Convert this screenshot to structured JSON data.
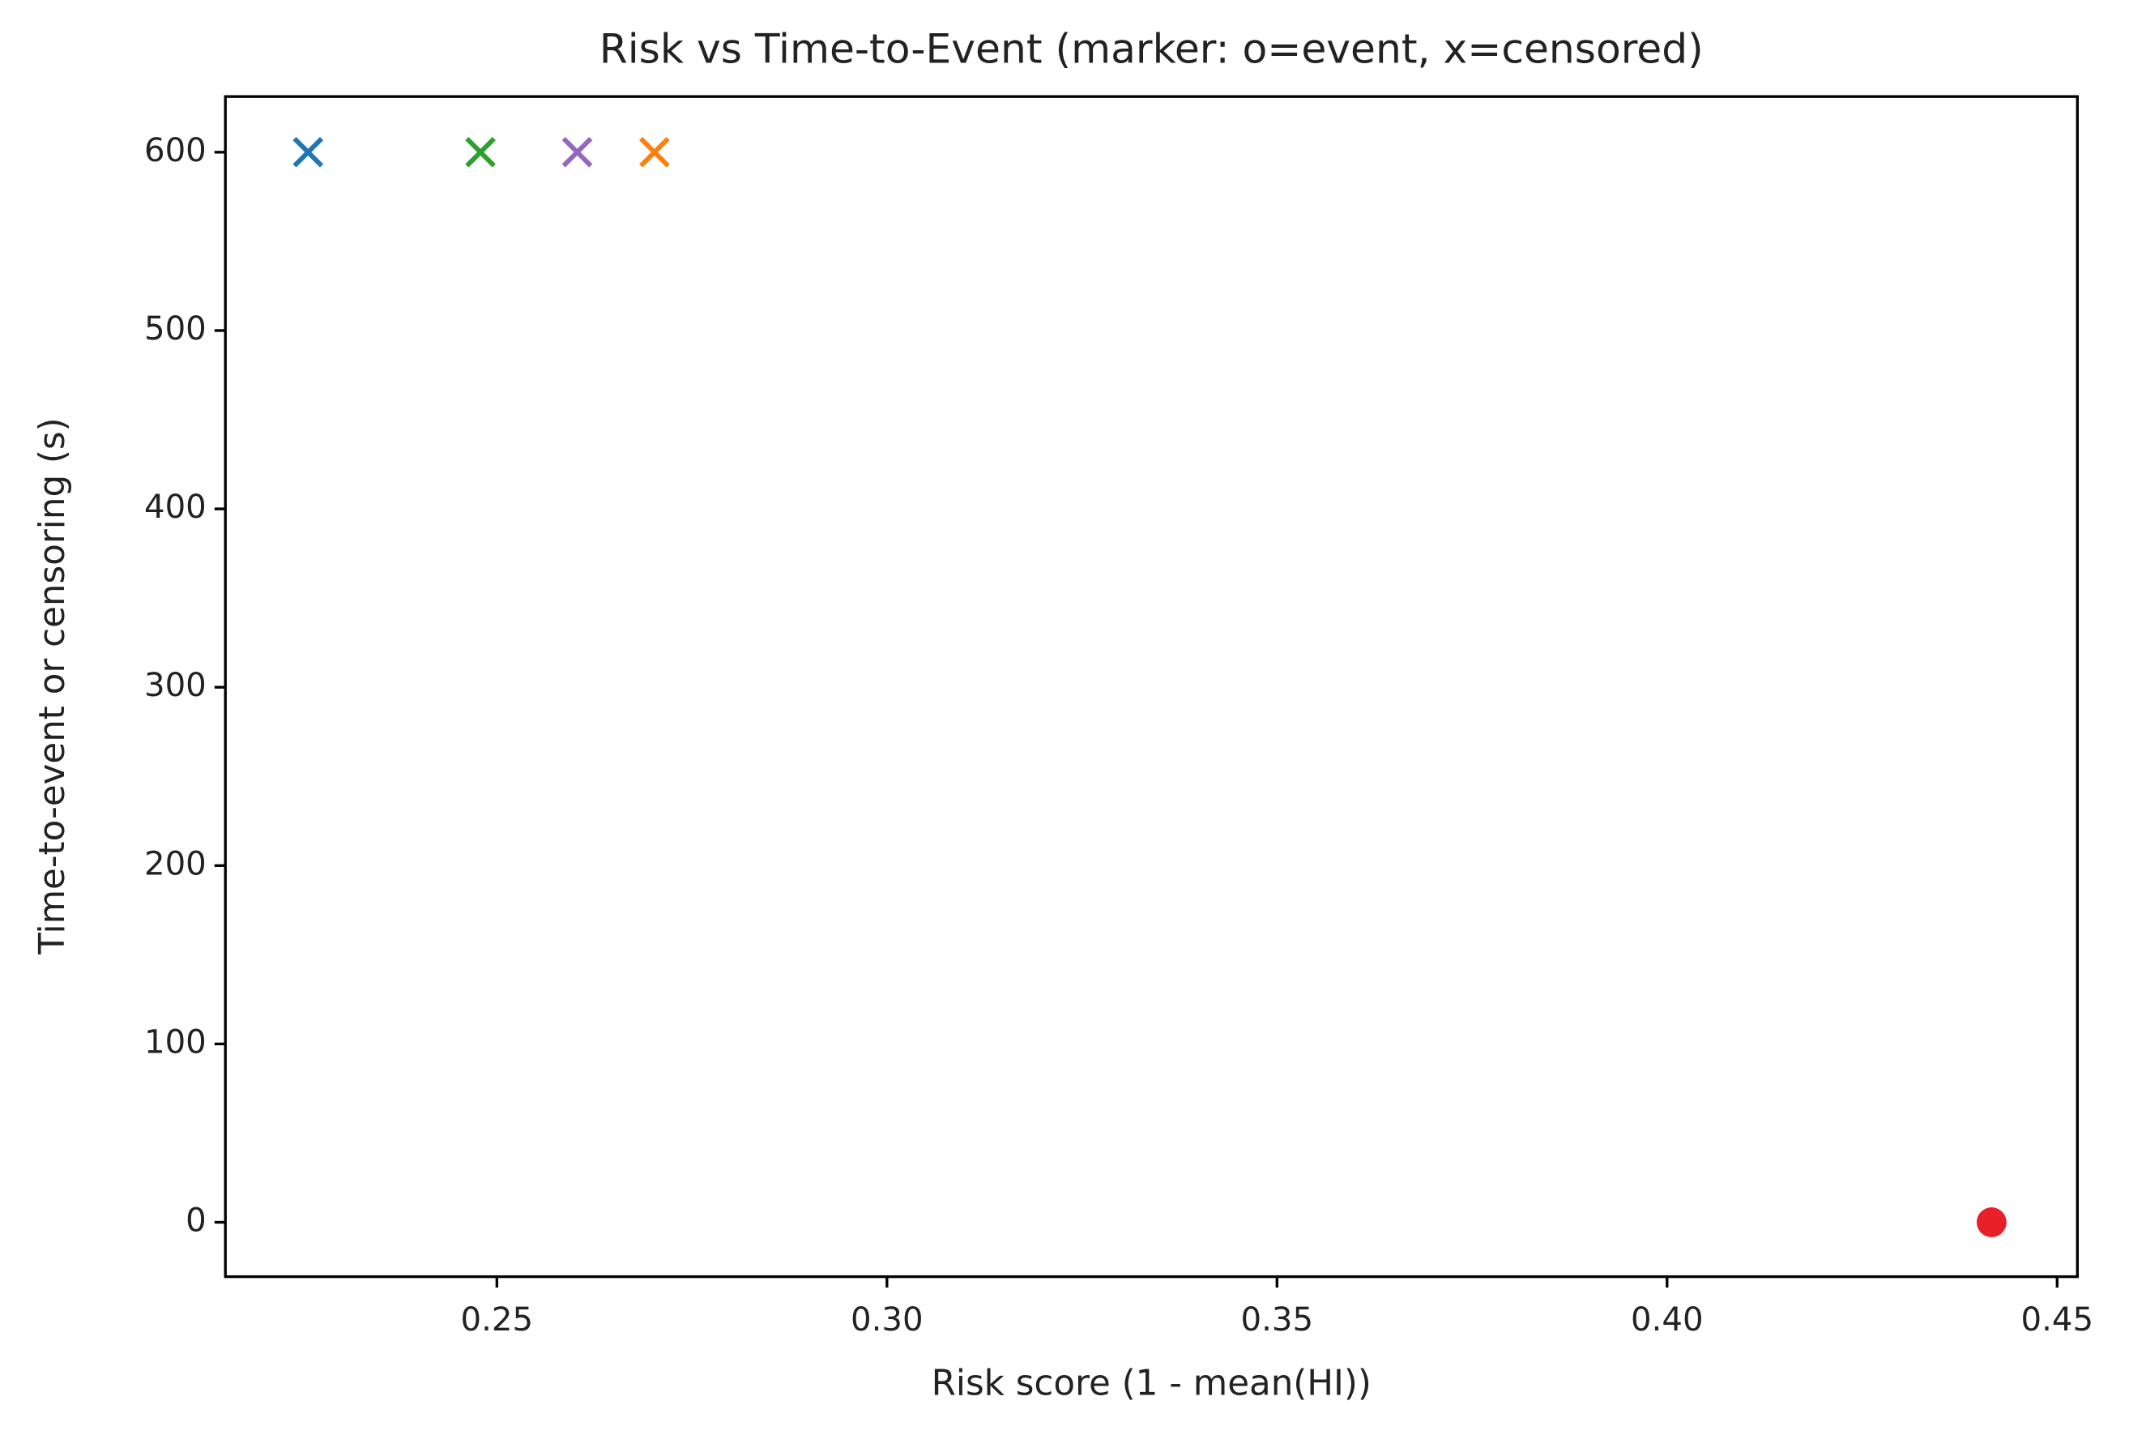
{
  "chart_data": {
    "type": "scatter",
    "title": "Risk vs Time-to-Event (marker: o=event, x=censored)",
    "xlabel": "Risk score (1 - mean(HI))",
    "ylabel": "Time-to-event or censoring (s)",
    "x": [
      0.2258,
      0.2479,
      0.2603,
      0.2702,
      0.4416
    ],
    "y": [
      600,
      600,
      600,
      600,
      0
    ],
    "colors": [
      "#1f77b4",
      "#2ca02c",
      "#9467bd",
      "#ff7f0e",
      "#e8202a"
    ],
    "markers": [
      "x",
      "x",
      "x",
      "x",
      "o"
    ],
    "xlim": [
      0.2152,
      0.4526
    ],
    "ylim": [
      -30.5,
      631.2
    ],
    "xticks": [
      0.25,
      {
        "value": 0.3,
        "label": "0.30"
      },
      0.35,
      {
        "value": 0.4,
        "label": "0.40"
      },
      0.45
    ],
    "yticks": [
      0,
      100,
      200,
      300,
      400,
      500,
      600
    ],
    "grid": false
  }
}
